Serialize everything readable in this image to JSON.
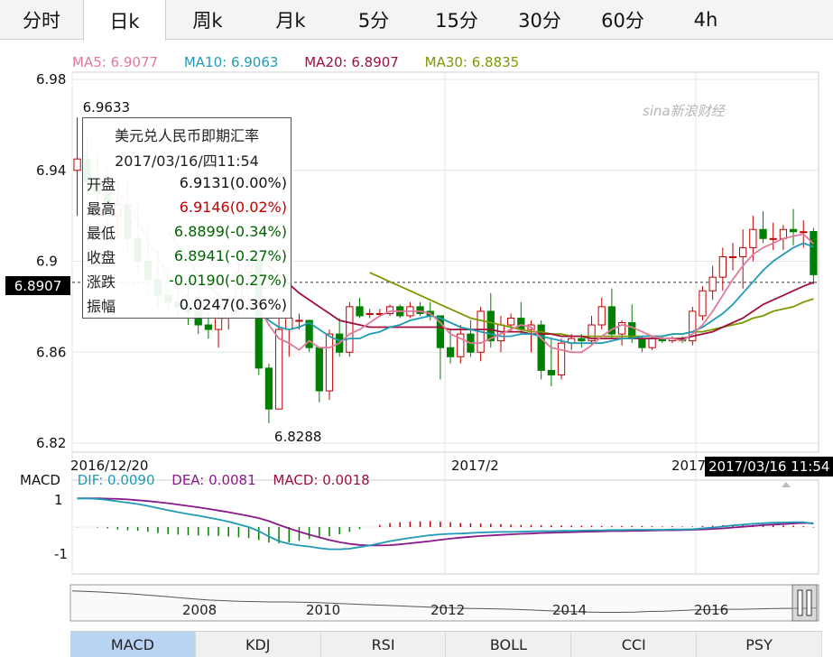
{
  "tabs": [
    {
      "label": "分时",
      "active": false
    },
    {
      "label": "日k",
      "active": true
    },
    {
      "label": "周k",
      "active": false
    },
    {
      "label": "月k",
      "active": false
    },
    {
      "label": "5分",
      "active": false
    },
    {
      "label": "15分",
      "active": false
    },
    {
      "label": "30分",
      "active": false
    },
    {
      "label": "60分",
      "active": false
    },
    {
      "label": "4h",
      "active": false
    }
  ],
  "ma_legend": {
    "ma5": "MA5: 6.9077",
    "ma10": "MA10: 6.9063",
    "ma20": "MA20: 6.8907",
    "ma30": "MA30: 6.8835"
  },
  "watermark": "sina新浪财经",
  "last_price_label": "6.8907",
  "tooltip": {
    "title": "美元兑人民币即期汇率",
    "datetime": "2017/03/16/四11:54",
    "rows": [
      {
        "label": "开盘",
        "value": "6.9131(0.00%)",
        "color": "#111111"
      },
      {
        "label": "最高",
        "value": "6.9146(0.02%)",
        "color": "#c00000"
      },
      {
        "label": "最低",
        "value": "6.8899(-0.34%)",
        "color": "#006400"
      },
      {
        "label": "收盘",
        "value": "6.8941(-0.27%)",
        "color": "#006400"
      },
      {
        "label": "涨跌",
        "value": "-0.0190(-0.27%)",
        "color": "#006400"
      },
      {
        "label": "振幅",
        "value": "0.0247(0.36%)",
        "color": "#111111"
      }
    ]
  },
  "date_badge": "2017/03/16 11:54",
  "macd_legend": {
    "title": "MACD",
    "dif": "DIF: 0.0090",
    "dea": "DEA: 0.0081",
    "macd": "MACD: 0.0018"
  },
  "navigator": {
    "labels": [
      "2008",
      "2010",
      "2012",
      "2014",
      "2016"
    ]
  },
  "indicator_tabs": [
    {
      "label": "MACD",
      "active": true
    },
    {
      "label": "KDJ",
      "active": false
    },
    {
      "label": "RSI",
      "active": false
    },
    {
      "label": "BOLL",
      "active": false
    },
    {
      "label": "CCI",
      "active": false
    },
    {
      "label": "PSY",
      "active": false
    }
  ],
  "colors": {
    "up": "#c00000",
    "down": "#008000",
    "ma5": "#e07a9a",
    "ma10": "#1f9bb5",
    "ma20": "#a0103c",
    "ma30": "#7a9a00",
    "dif": "#1f9bb5",
    "dea": "#8a1a8a"
  },
  "chart_data": [
    {
      "type": "candlestick",
      "title": "美元兑人民币即期汇率",
      "ylim": [
        6.82,
        6.98
      ],
      "yticks": [
        6.98,
        6.94,
        6.9,
        6.86,
        6.82
      ],
      "xticks": [
        "2016/12/20",
        "2017/2",
        "2017"
      ],
      "annotations": [
        {
          "text": "6.9633",
          "at_index": 0,
          "kind": "high"
        },
        {
          "text": "6.8288",
          "at_index": 19,
          "kind": "low"
        }
      ],
      "candles": [
        {
          "o": 6.94,
          "h": 6.9633,
          "l": 6.92,
          "c": 6.945
        },
        {
          "o": 6.945,
          "h": 6.955,
          "l": 6.93,
          "c": 6.935
        },
        {
          "o": 6.935,
          "h": 6.948,
          "l": 6.925,
          "c": 6.93
        },
        {
          "o": 6.93,
          "h": 6.94,
          "l": 6.915,
          "c": 6.92
        },
        {
          "o": 6.92,
          "h": 6.935,
          "l": 6.91,
          "c": 6.925
        },
        {
          "o": 6.925,
          "h": 6.935,
          "l": 6.905,
          "c": 6.91
        },
        {
          "o": 6.91,
          "h": 6.925,
          "l": 6.895,
          "c": 6.9
        },
        {
          "o": 6.9,
          "h": 6.915,
          "l": 6.885,
          "c": 6.892
        },
        {
          "o": 6.892,
          "h": 6.905,
          "l": 6.88,
          "c": 6.885
        },
        {
          "o": 6.885,
          "h": 6.898,
          "l": 6.878,
          "c": 6.882
        },
        {
          "o": 6.882,
          "h": 6.895,
          "l": 6.875,
          "c": 6.88
        },
        {
          "o": 6.88,
          "h": 6.892,
          "l": 6.872,
          "c": 6.878
        },
        {
          "o": 6.878,
          "h": 6.888,
          "l": 6.868,
          "c": 6.872
        },
        {
          "o": 6.872,
          "h": 6.885,
          "l": 6.866,
          "c": 6.87
        },
        {
          "o": 6.87,
          "h": 6.88,
          "l": 6.862,
          "c": 6.875
        },
        {
          "o": 6.875,
          "h": 6.885,
          "l": 6.87,
          "c": 6.88
        },
        {
          "o": 6.88,
          "h": 6.9,
          "l": 6.875,
          "c": 6.895
        },
        {
          "o": 6.895,
          "h": 6.905,
          "l": 6.89,
          "c": 6.898
        },
        {
          "o": 6.9,
          "h": 6.902,
          "l": 6.85,
          "c": 6.853
        },
        {
          "o": 6.853,
          "h": 6.855,
          "l": 6.8288,
          "c": 6.835
        },
        {
          "o": 6.835,
          "h": 6.878,
          "l": 6.835,
          "c": 6.87
        },
        {
          "o": 6.87,
          "h": 6.876,
          "l": 6.858,
          "c": 6.875
        },
        {
          "o": 6.874,
          "h": 6.877,
          "l": 6.87,
          "c": 6.874
        },
        {
          "o": 6.874,
          "h": 6.874,
          "l": 6.86,
          "c": 6.862
        },
        {
          "o": 6.862,
          "h": 6.862,
          "l": 6.838,
          "c": 6.843
        },
        {
          "o": 6.843,
          "h": 6.87,
          "l": 6.839,
          "c": 6.868
        },
        {
          "o": 6.868,
          "h": 6.875,
          "l": 6.858,
          "c": 6.86
        },
        {
          "o": 6.86,
          "h": 6.882,
          "l": 6.858,
          "c": 6.88
        },
        {
          "o": 6.88,
          "h": 6.884,
          "l": 6.875,
          "c": 6.876
        },
        {
          "o": 6.877,
          "h": 6.879,
          "l": 6.875,
          "c": 6.877
        },
        {
          "o": 6.877,
          "h": 6.879,
          "l": 6.876,
          "c": 6.877
        },
        {
          "o": 6.877,
          "h": 6.881,
          "l": 6.876,
          "c": 6.88
        },
        {
          "o": 6.88,
          "h": 6.881,
          "l": 6.875,
          "c": 6.876
        },
        {
          "o": 6.876,
          "h": 6.882,
          "l": 6.875,
          "c": 6.88
        },
        {
          "o": 6.88,
          "h": 6.882,
          "l": 6.876,
          "c": 6.877
        },
        {
          "o": 6.878,
          "h": 6.882,
          "l": 6.874,
          "c": 6.876
        },
        {
          "o": 6.876,
          "h": 6.876,
          "l": 6.848,
          "c": 6.862
        },
        {
          "o": 6.862,
          "h": 6.87,
          "l": 6.855,
          "c": 6.858
        },
        {
          "o": 6.858,
          "h": 6.872,
          "l": 6.855,
          "c": 6.868
        },
        {
          "o": 6.868,
          "h": 6.874,
          "l": 6.858,
          "c": 6.86
        },
        {
          "o": 6.86,
          "h": 6.88,
          "l": 6.856,
          "c": 6.878
        },
        {
          "o": 6.878,
          "h": 6.886,
          "l": 6.862,
          "c": 6.865
        },
        {
          "o": 6.865,
          "h": 6.876,
          "l": 6.86,
          "c": 6.872
        },
        {
          "o": 6.872,
          "h": 6.877,
          "l": 6.869,
          "c": 6.875
        },
        {
          "o": 6.875,
          "h": 6.882,
          "l": 6.868,
          "c": 6.87
        },
        {
          "o": 6.87,
          "h": 6.874,
          "l": 6.86,
          "c": 6.872
        },
        {
          "o": 6.872,
          "h": 6.874,
          "l": 6.848,
          "c": 6.852
        },
        {
          "o": 6.852,
          "h": 6.866,
          "l": 6.845,
          "c": 6.85
        },
        {
          "o": 6.85,
          "h": 6.866,
          "l": 6.848,
          "c": 6.864
        },
        {
          "o": 6.864,
          "h": 6.868,
          "l": 6.861,
          "c": 6.866
        },
        {
          "o": 6.866,
          "h": 6.868,
          "l": 6.862,
          "c": 6.865
        },
        {
          "o": 6.865,
          "h": 6.876,
          "l": 6.863,
          "c": 6.872
        },
        {
          "o": 6.872,
          "h": 6.884,
          "l": 6.87,
          "c": 6.88
        },
        {
          "o": 6.88,
          "h": 6.888,
          "l": 6.866,
          "c": 6.868
        },
        {
          "o": 6.868,
          "h": 6.874,
          "l": 6.863,
          "c": 6.873
        },
        {
          "o": 6.873,
          "h": 6.881,
          "l": 6.864,
          "c": 6.866
        },
        {
          "o": 6.866,
          "h": 6.867,
          "l": 6.86,
          "c": 6.862
        },
        {
          "o": 6.862,
          "h": 6.867,
          "l": 6.861,
          "c": 6.866
        },
        {
          "o": 6.866,
          "h": 6.867,
          "l": 6.864,
          "c": 6.865
        },
        {
          "o": 6.865,
          "h": 6.867,
          "l": 6.864,
          "c": 6.866
        },
        {
          "o": 6.866,
          "h": 6.867,
          "l": 6.864,
          "c": 6.865
        },
        {
          "o": 6.865,
          "h": 6.88,
          "l": 6.863,
          "c": 6.878
        },
        {
          "o": 6.876,
          "h": 6.889,
          "l": 6.874,
          "c": 6.887
        },
        {
          "o": 6.887,
          "h": 6.898,
          "l": 6.883,
          "c": 6.893
        },
        {
          "o": 6.893,
          "h": 6.906,
          "l": 6.887,
          "c": 6.902
        },
        {
          "o": 6.902,
          "h": 6.908,
          "l": 6.896,
          "c": 6.902
        },
        {
          "o": 6.902,
          "h": 6.914,
          "l": 6.888,
          "c": 6.906
        },
        {
          "o": 6.906,
          "h": 6.92,
          "l": 6.9,
          "c": 6.914
        },
        {
          "o": 6.914,
          "h": 6.922,
          "l": 6.908,
          "c": 6.91
        },
        {
          "o": 6.91,
          "h": 6.917,
          "l": 6.905,
          "c": 6.91
        },
        {
          "o": 6.91,
          "h": 6.916,
          "l": 6.905,
          "c": 6.914
        },
        {
          "o": 6.914,
          "h": 6.923,
          "l": 6.907,
          "c": 6.913
        },
        {
          "o": 6.913,
          "h": 6.918,
          "l": 6.906,
          "c": 6.913
        },
        {
          "o": 6.9131,
          "h": 6.9146,
          "l": 6.8899,
          "c": 6.8941
        }
      ],
      "ma5": [
        null,
        null,
        null,
        null,
        6.931,
        6.925,
        6.918,
        6.909,
        6.902,
        6.894,
        6.888,
        6.884,
        6.879,
        6.876,
        6.875,
        6.875,
        6.878,
        6.884,
        6.88,
        6.872,
        6.866,
        6.864,
        6.861,
        6.865,
        6.862,
        6.862,
        6.864,
        6.868,
        6.87,
        6.873,
        6.876,
        6.878,
        6.878,
        6.878,
        6.878,
        6.877,
        6.873,
        6.868,
        6.866,
        6.864,
        6.864,
        6.866,
        6.868,
        6.87,
        6.872,
        6.871,
        6.866,
        6.862,
        6.861,
        6.86,
        6.86,
        6.863,
        6.867,
        6.87,
        6.872,
        6.871,
        6.869,
        6.867,
        6.866,
        6.866,
        6.865,
        6.868,
        6.872,
        6.878,
        6.885,
        6.892,
        6.898,
        6.903,
        6.906,
        6.908,
        6.91,
        6.911,
        6.912,
        6.9077
      ],
      "ma10": [
        null,
        null,
        null,
        null,
        null,
        null,
        null,
        null,
        null,
        6.913,
        6.907,
        6.901,
        6.894,
        6.889,
        6.885,
        6.881,
        6.88,
        6.88,
        6.878,
        6.874,
        6.871,
        6.87,
        6.871,
        6.873,
        6.87,
        6.867,
        6.865,
        6.866,
        6.866,
        6.868,
        6.869,
        6.871,
        6.872,
        6.874,
        6.875,
        6.876,
        6.875,
        6.873,
        6.871,
        6.87,
        6.869,
        6.868,
        6.867,
        6.867,
        6.868,
        6.868,
        6.867,
        6.866,
        6.865,
        6.864,
        6.864,
        6.864,
        6.864,
        6.865,
        6.866,
        6.866,
        6.867,
        6.867,
        6.867,
        6.868,
        6.868,
        6.869,
        6.871,
        6.874,
        6.877,
        6.881,
        6.886,
        6.891,
        6.896,
        6.9,
        6.903,
        6.906,
        6.908,
        6.9063
      ],
      "ma20": [
        null,
        null,
        null,
        null,
        null,
        null,
        null,
        null,
        null,
        null,
        null,
        null,
        null,
        null,
        null,
        null,
        null,
        null,
        null,
        6.898,
        6.894,
        6.89,
        6.886,
        6.883,
        6.88,
        6.877,
        6.874,
        6.873,
        6.872,
        6.871,
        6.871,
        6.871,
        6.871,
        6.871,
        6.871,
        6.871,
        6.871,
        6.87,
        6.87,
        6.87,
        6.87,
        6.87,
        6.869,
        6.869,
        6.869,
        6.868,
        6.868,
        6.868,
        6.867,
        6.867,
        6.867,
        6.866,
        6.866,
        6.866,
        6.866,
        6.866,
        6.866,
        6.866,
        6.866,
        6.866,
        6.866,
        6.867,
        6.868,
        6.869,
        6.871,
        6.873,
        6.875,
        6.878,
        6.881,
        6.883,
        6.885,
        6.887,
        6.889,
        6.8907
      ],
      "ma30": [
        null,
        null,
        null,
        null,
        null,
        null,
        null,
        null,
        null,
        null,
        null,
        null,
        null,
        null,
        null,
        null,
        null,
        null,
        null,
        null,
        null,
        null,
        null,
        null,
        null,
        null,
        null,
        null,
        null,
        6.895,
        6.893,
        6.891,
        6.889,
        6.887,
        6.885,
        6.883,
        6.881,
        6.879,
        6.877,
        6.875,
        6.874,
        6.873,
        6.872,
        6.871,
        6.87,
        6.869,
        6.869,
        6.868,
        6.868,
        6.867,
        6.867,
        6.867,
        6.867,
        6.867,
        6.867,
        6.867,
        6.867,
        6.867,
        6.867,
        6.868,
        6.868,
        6.869,
        6.869,
        6.87,
        6.871,
        6.872,
        6.873,
        6.875,
        6.876,
        6.878,
        6.879,
        6.88,
        6.882,
        6.8835
      ]
    },
    {
      "type": "line",
      "title": "MACD",
      "ylim": [
        -1.25,
        1.25
      ],
      "yticks": [
        1,
        -1
      ],
      "dif": [
        1.05,
        1.06,
        1.04,
        1.0,
        0.95,
        0.9,
        0.85,
        0.78,
        0.7,
        0.62,
        0.55,
        0.48,
        0.42,
        0.35,
        0.28,
        0.2,
        0.1,
        0.0,
        -0.15,
        -0.35,
        -0.52,
        -0.62,
        -0.68,
        -0.72,
        -0.78,
        -0.82,
        -0.82,
        -0.8,
        -0.74,
        -0.68,
        -0.6,
        -0.52,
        -0.46,
        -0.4,
        -0.35,
        -0.3,
        -0.27,
        -0.25,
        -0.24,
        -0.22,
        -0.2,
        -0.19,
        -0.18,
        -0.18,
        -0.17,
        -0.16,
        -0.15,
        -0.15,
        -0.14,
        -0.14,
        -0.13,
        -0.12,
        -0.12,
        -0.11,
        -0.11,
        -0.1,
        -0.1,
        -0.1,
        -0.1,
        -0.09,
        -0.09,
        -0.08,
        -0.05,
        -0.02,
        0.02,
        0.06,
        0.09,
        0.12,
        0.14,
        0.16,
        0.17,
        0.18,
        0.18,
        0.12
      ],
      "dea": [
        1.06,
        1.06,
        1.06,
        1.05,
        1.04,
        1.02,
        0.99,
        0.96,
        0.92,
        0.88,
        0.83,
        0.78,
        0.73,
        0.67,
        0.61,
        0.55,
        0.48,
        0.41,
        0.33,
        0.22,
        0.08,
        -0.05,
        -0.17,
        -0.28,
        -0.38,
        -0.48,
        -0.56,
        -0.62,
        -0.66,
        -0.68,
        -0.68,
        -0.67,
        -0.64,
        -0.6,
        -0.56,
        -0.52,
        -0.47,
        -0.43,
        -0.39,
        -0.36,
        -0.33,
        -0.31,
        -0.29,
        -0.27,
        -0.25,
        -0.24,
        -0.22,
        -0.21,
        -0.2,
        -0.19,
        -0.18,
        -0.17,
        -0.16,
        -0.15,
        -0.15,
        -0.14,
        -0.14,
        -0.13,
        -0.12,
        -0.12,
        -0.11,
        -0.1,
        -0.09,
        -0.07,
        -0.05,
        -0.02,
        0.01,
        0.04,
        0.07,
        0.09,
        0.11,
        0.13,
        0.15,
        0.14
      ],
      "macd": [
        -0.01,
        0.0,
        -0.02,
        -0.05,
        -0.09,
        -0.12,
        -0.14,
        -0.18,
        -0.22,
        -0.26,
        -0.28,
        -0.3,
        -0.31,
        -0.32,
        -0.33,
        -0.35,
        -0.38,
        -0.41,
        -0.48,
        -0.57,
        -0.6,
        -0.57,
        -0.51,
        -0.44,
        -0.4,
        -0.34,
        -0.26,
        -0.18,
        -0.08,
        0.0,
        0.08,
        0.15,
        0.18,
        0.2,
        0.21,
        0.22,
        0.2,
        0.18,
        0.15,
        0.14,
        0.13,
        0.12,
        0.11,
        0.09,
        0.08,
        0.08,
        0.07,
        0.06,
        0.06,
        0.05,
        0.05,
        0.05,
        0.04,
        0.04,
        0.04,
        0.04,
        0.04,
        0.03,
        0.02,
        0.03,
        0.02,
        0.02,
        0.04,
        0.05,
        0.07,
        0.08,
        0.08,
        0.08,
        0.07,
        0.07,
        0.06,
        0.05,
        0.03,
        -0.02
      ]
    }
  ]
}
